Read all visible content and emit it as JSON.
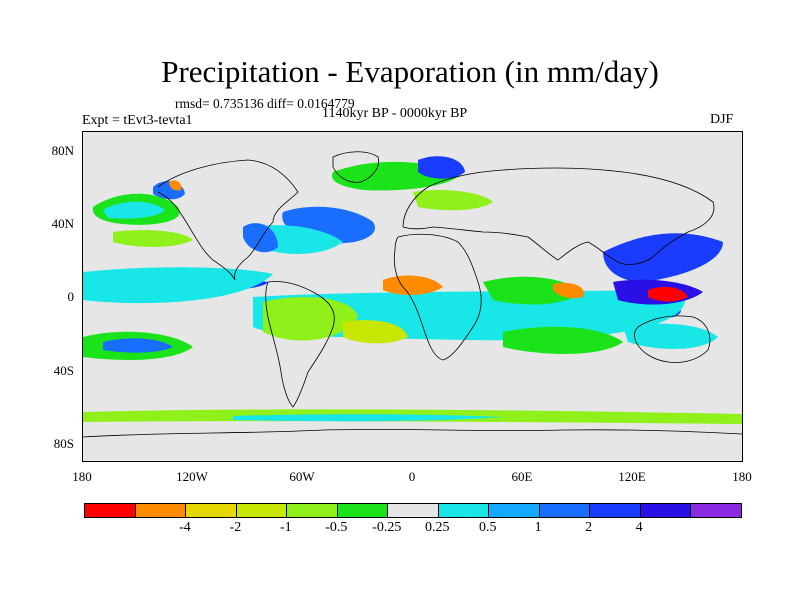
{
  "title": "Precipitation - Evaporation (in mm/day)",
  "stats": "rmsd= 0.735136 diff= 0.0164779",
  "expt": "Expt = tEvt3-tevta1",
  "period": "1140kyr BP - 0000kyr BP",
  "season": "DJF",
  "map": {
    "projection": "cylindrical equidistant",
    "lon_range": [
      -180,
      180
    ],
    "lat_range": [
      -90,
      90
    ],
    "y_axis_labels": [
      "80N",
      "40N",
      "0",
      "40S",
      "80S"
    ],
    "x_axis_labels": [
      "180",
      "120W",
      "60W",
      "0",
      "60E",
      "120E",
      "180"
    ],
    "background_color": "#e6e6e6",
    "coastline_color": "#000000"
  },
  "colorbar": {
    "colors": [
      "#ff0000",
      "#ff8c00",
      "#e5d800",
      "#c7e600",
      "#8ff01a",
      "#1ae31a",
      "#e6e6e6",
      "#19e6e6",
      "#14a9ff",
      "#1a6eff",
      "#1a3cff",
      "#2a10e6",
      "#8a2be2"
    ],
    "labels": [
      "-4",
      "-2",
      "-1",
      "-0.5",
      "-0.25",
      "0.25",
      "0.5",
      "1",
      "2",
      "4"
    ]
  }
}
